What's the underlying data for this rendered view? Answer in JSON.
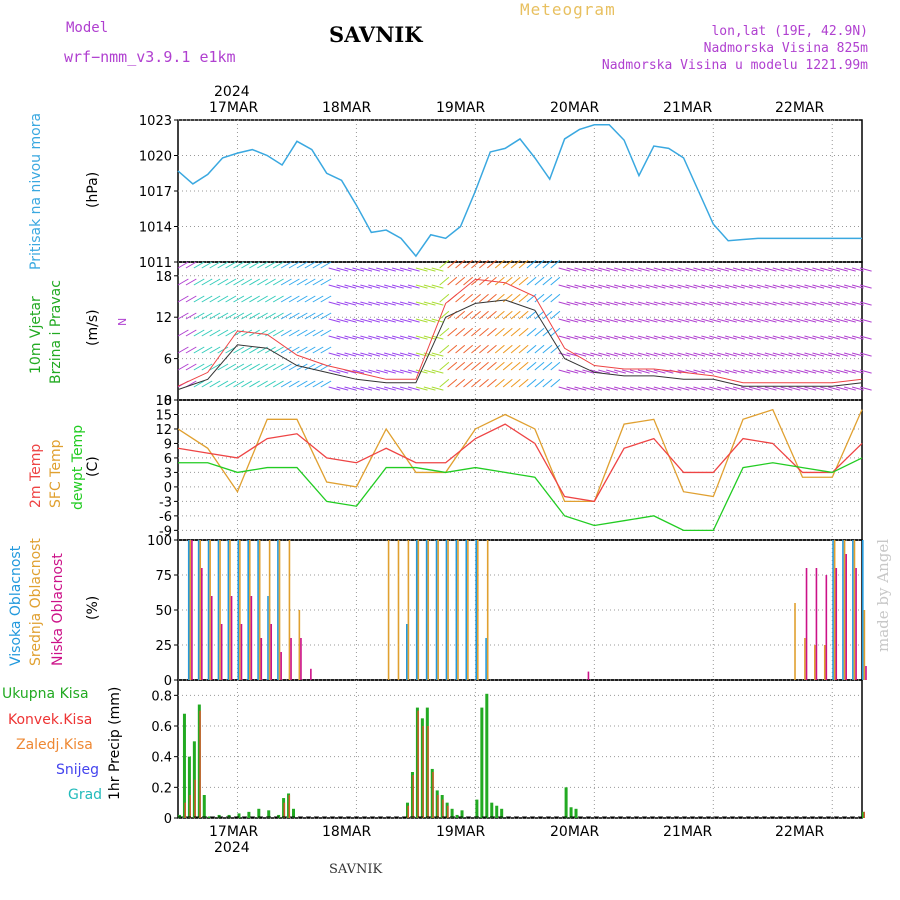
{
  "header": {
    "model_label": "Model",
    "model_name": "wrf−nmm_v3.9.1 e1km",
    "meteogram_label": "Meteogram",
    "station": "SAVNIK",
    "coords": "lon,lat (19E, 42.9N)",
    "elevation": "Nadmorska Visina 825m",
    "model_elevation": "Nadmorska Visina u modelu 1221.99m"
  },
  "top_axis": {
    "year": "2024",
    "dates": [
      "17MAR",
      "18MAR",
      "19MAR",
      "20MAR",
      "21MAR",
      "22MAR"
    ]
  },
  "bottom_axis": {
    "year": "2024",
    "dates": [
      "17MAR",
      "18MAR",
      "19MAR",
      "20MAR",
      "21MAR",
      "22MAR"
    ]
  },
  "footer": {
    "station": "SAVNIK"
  },
  "signature": "made by Angel",
  "colors": {
    "pressure": "#3aa8e0",
    "temp2m": "#ee4444",
    "sfc": "#e0a030",
    "dew": "#22cc22",
    "purple": "#b040d0",
    "green": "#22aa22",
    "red": "#ee3333",
    "orange": "#ee8833",
    "blue": "#4444ee",
    "cyan": "#22bbbb",
    "high_cloud": "#2299dd",
    "low_cloud": "#cc1188"
  },
  "chart_data": [
    {
      "type": "line",
      "ylabel": "Pritisak na nivou mora",
      "units": "(hPa)",
      "ylim": [
        1011,
        1023
      ],
      "yticks": [
        1011,
        1014,
        1017,
        1020,
        1023
      ],
      "grid": true,
      "x_hours": [
        0,
        3,
        6,
        9,
        12,
        15,
        18,
        21,
        24,
        27,
        30,
        33,
        36,
        39,
        42,
        45,
        48,
        51,
        54,
        57,
        60,
        63,
        66,
        69,
        72,
        75,
        78,
        81,
        84,
        87,
        90,
        93,
        96,
        99,
        102,
        105,
        108,
        111,
        114,
        117,
        120,
        123,
        126,
        129,
        132,
        135,
        138
      ],
      "series": [
        {
          "name": "pressure",
          "values": [
            1018.7,
            1017.6,
            1018.4,
            1019.8,
            1020.2,
            1020.5,
            1020.0,
            1019.2,
            1021.2,
            1020.5,
            1018.5,
            1017.9,
            1015.8,
            1013.5,
            1013.7,
            1013.0,
            1011.5,
            1013.3,
            1013.0,
            1014.0,
            1017.0,
            1020.3,
            1020.6,
            1021.4,
            1019.8,
            1018.0,
            1021.4,
            1022.2,
            1022.6,
            1022.6,
            1021.3,
            1018.3,
            1020.8,
            1020.6,
            1019.8,
            1017.0,
            1014.2,
            1012.8,
            1012.9,
            1013.0,
            1013.0,
            1013.0,
            1013.0,
            1013.0,
            1013.0,
            1013.0,
            1013.0
          ]
        }
      ]
    },
    {
      "type": "line",
      "ylabel": "10m Vjetar Brzina i Pravac",
      "units": "(m/s)",
      "ylim": [
        0,
        20
      ],
      "yticks": [
        0,
        6,
        12,
        18
      ],
      "grid": true,
      "x_hours": [
        0,
        6,
        12,
        18,
        24,
        30,
        36,
        42,
        48,
        54,
        60,
        66,
        72,
        78,
        84,
        90,
        96,
        102,
        108,
        114,
        120,
        126,
        132,
        138
      ],
      "series": [
        {
          "name": "wind_speed",
          "values": [
            1.5,
            3.0,
            8.0,
            7.5,
            5.0,
            4.0,
            3.0,
            2.5,
            2.5,
            12.0,
            14.0,
            14.5,
            13.0,
            6.0,
            4.0,
            3.5,
            3.5,
            3.0,
            3.0,
            2.0,
            2.0,
            2.0,
            2.0,
            2.5
          ]
        },
        {
          "name": "wind_gust",
          "values": [
            2.0,
            4.0,
            10.0,
            9.5,
            6.5,
            5.0,
            4.0,
            3.0,
            3.0,
            14.0,
            17.5,
            17.0,
            15.0,
            7.5,
            5.0,
            4.5,
            4.5,
            4.0,
            3.5,
            2.5,
            2.5,
            2.5,
            2.5,
            3.0
          ]
        }
      ],
      "wind_rose_label": "N"
    },
    {
      "type": "line",
      "ylabel": "2m Temp / SFC Temp / dewpt Temp",
      "units": "(C)",
      "ylim": [
        -11,
        18
      ],
      "yticks": [
        -9,
        -6,
        -3,
        0,
        3,
        6,
        9,
        12,
        15,
        18
      ],
      "grid": true,
      "x_hours": [
        0,
        6,
        12,
        18,
        24,
        30,
        36,
        42,
        48,
        54,
        60,
        66,
        72,
        78,
        84,
        90,
        96,
        102,
        108,
        114,
        120,
        126,
        132,
        138
      ],
      "series": [
        {
          "name": "2m Temp",
          "values": [
            8,
            7,
            6,
            10,
            11,
            6,
            5,
            8,
            5,
            5,
            10,
            13,
            9,
            -2,
            -3,
            8,
            10,
            3,
            3,
            10,
            9,
            3,
            3,
            9
          ]
        },
        {
          "name": "SFC Temp",
          "values": [
            12,
            8,
            -1,
            14,
            14,
            1,
            0,
            12,
            3,
            3,
            12,
            15,
            12,
            -3,
            -3,
            13,
            14,
            -1,
            -2,
            14,
            16,
            2,
            2,
            16
          ]
        },
        {
          "name": "dewpt Temp",
          "values": [
            5,
            5,
            3,
            4,
            4,
            -3,
            -4,
            4,
            4,
            3,
            4,
            3,
            2,
            -6,
            -8,
            -7,
            -6,
            -9,
            -9,
            4,
            5,
            4,
            3,
            6
          ]
        }
      ]
    },
    {
      "type": "bar",
      "ylabel": "Visoka / Srednja / Niska Oblacnost",
      "units": "(%)",
      "ylim": [
        0,
        100
      ],
      "yticks": [
        0,
        25,
        50,
        75,
        100
      ],
      "grid": true,
      "x_hours": [
        0,
        2,
        4,
        6,
        8,
        10,
        12,
        14,
        16,
        18,
        20,
        22,
        24,
        26,
        28,
        30,
        32,
        34,
        36,
        38,
        40,
        42,
        44,
        46,
        48,
        50,
        52,
        54,
        56,
        58,
        60,
        62,
        64,
        66,
        68,
        70,
        72,
        74,
        76,
        78,
        80,
        82,
        84,
        86,
        88,
        90,
        92,
        94,
        96,
        98,
        100,
        102,
        104,
        106,
        108,
        110,
        112,
        114,
        116,
        118,
        120,
        122,
        124,
        126,
        128,
        130,
        132,
        134,
        136,
        138
      ],
      "series": [
        {
          "name": "Visoka Oblacnost",
          "values": [
            0,
            100,
            100,
            100,
            100,
            100,
            100,
            100,
            100,
            60,
            100,
            0,
            0,
            0,
            0,
            0,
            0,
            0,
            0,
            0,
            0,
            0,
            0,
            40,
            100,
            100,
            100,
            100,
            100,
            100,
            100,
            30,
            0,
            0,
            0,
            0,
            0,
            0,
            0,
            0,
            0,
            0,
            0,
            0,
            0,
            0,
            0,
            0,
            0,
            0,
            0,
            0,
            0,
            0,
            0,
            0,
            0,
            0,
            0,
            0,
            0,
            0,
            0,
            0,
            0,
            0,
            100,
            100,
            100,
            100
          ]
        },
        {
          "name": "Srednja Oblacnost",
          "values": [
            0,
            100,
            100,
            100,
            100,
            100,
            100,
            100,
            100,
            100,
            100,
            100,
            50,
            0,
            0,
            0,
            0,
            0,
            0,
            0,
            0,
            100,
            100,
            100,
            100,
            100,
            100,
            100,
            100,
            100,
            100,
            100,
            0,
            0,
            0,
            0,
            0,
            0,
            0,
            0,
            0,
            0,
            0,
            0,
            0,
            0,
            0,
            0,
            0,
            0,
            0,
            0,
            0,
            0,
            0,
            0,
            0,
            0,
            0,
            0,
            0,
            0,
            55,
            30,
            25,
            25,
            100,
            100,
            100,
            50
          ]
        },
        {
          "name": "Niska Oblacnost",
          "values": [
            0,
            100,
            80,
            60,
            40,
            60,
            40,
            60,
            30,
            40,
            20,
            30,
            30,
            8,
            0,
            0,
            0,
            0,
            0,
            0,
            0,
            0,
            0,
            0,
            0,
            0,
            0,
            0,
            0,
            0,
            0,
            0,
            0,
            0,
            0,
            0,
            0,
            0,
            0,
            0,
            0,
            6,
            0,
            0,
            0,
            0,
            0,
            0,
            0,
            0,
            0,
            0,
            0,
            0,
            0,
            0,
            0,
            0,
            0,
            0,
            0,
            0,
            0,
            80,
            80,
            75,
            80,
            90,
            80,
            10
          ]
        }
      ]
    },
    {
      "type": "bar",
      "ylabel": "1hr Precip (mm)",
      "ylim": [
        0,
        0.9
      ],
      "yticks": [
        0,
        0.2,
        0.4,
        0.6,
        0.8
      ],
      "grid": true,
      "x_hours": [
        0,
        1,
        2,
        3,
        4,
        5,
        6,
        8,
        10,
        12,
        14,
        16,
        18,
        20,
        21,
        22,
        23,
        46,
        47,
        48,
        49,
        50,
        51,
        52,
        53,
        54,
        55,
        56,
        57,
        60,
        61,
        62,
        63,
        64,
        65,
        78,
        79,
        80,
        138
      ],
      "series": [
        {
          "name": "Ukupna Kisa",
          "values": [
            0.02,
            0.68,
            0.4,
            0.5,
            0.74,
            0.15,
            0.01,
            0.02,
            0.02,
            0.03,
            0.04,
            0.06,
            0.05,
            0.02,
            0.13,
            0.16,
            0.06,
            0.1,
            0.3,
            0.72,
            0.65,
            0.72,
            0.32,
            0.18,
            0.15,
            0.1,
            0.06,
            0.02,
            0.05,
            0.12,
            0.72,
            0.81,
            0.1,
            0.08,
            0.06,
            0.2,
            0.07,
            0.06,
            0.04
          ]
        },
        {
          "name": "Konvek.Kisa",
          "values": [
            0,
            0.1,
            0.15,
            0.25,
            0.7,
            0,
            0,
            0,
            0,
            0,
            0,
            0,
            0,
            0,
            0.1,
            0.15,
            0,
            0.08,
            0.28,
            0.7,
            0.6,
            0.6,
            0.3,
            0.15,
            0.12,
            0.08,
            0,
            0,
            0,
            0,
            0,
            0,
            0,
            0,
            0,
            0,
            0,
            0,
            0.04
          ]
        }
      ]
    }
  ],
  "axes_labels": {
    "pressure": "Pritisak na nivou mora",
    "pressure_units": "(hPa)",
    "wind_a": "10m Vjetar",
    "wind_b": "Brzina i Pravac",
    "wind_units": "(m/s)",
    "wind_rose": "N",
    "temp_a": "2m Temp",
    "temp_b": "SFC Temp",
    "temp_c": "dewpt Temp",
    "temp_units": "(C)",
    "cloud_a": "Visoka Oblacnost",
    "cloud_b": "Srednja Oblacnost",
    "cloud_c": "Niska Oblacnost",
    "cloud_units": "(%)",
    "precip": "1hr Precip (mm)"
  },
  "precip_legend": [
    "Ukupna Kisa",
    "Konvek.Kisa",
    "Zaledj.Kisa",
    "Snijeg",
    "Grad"
  ]
}
